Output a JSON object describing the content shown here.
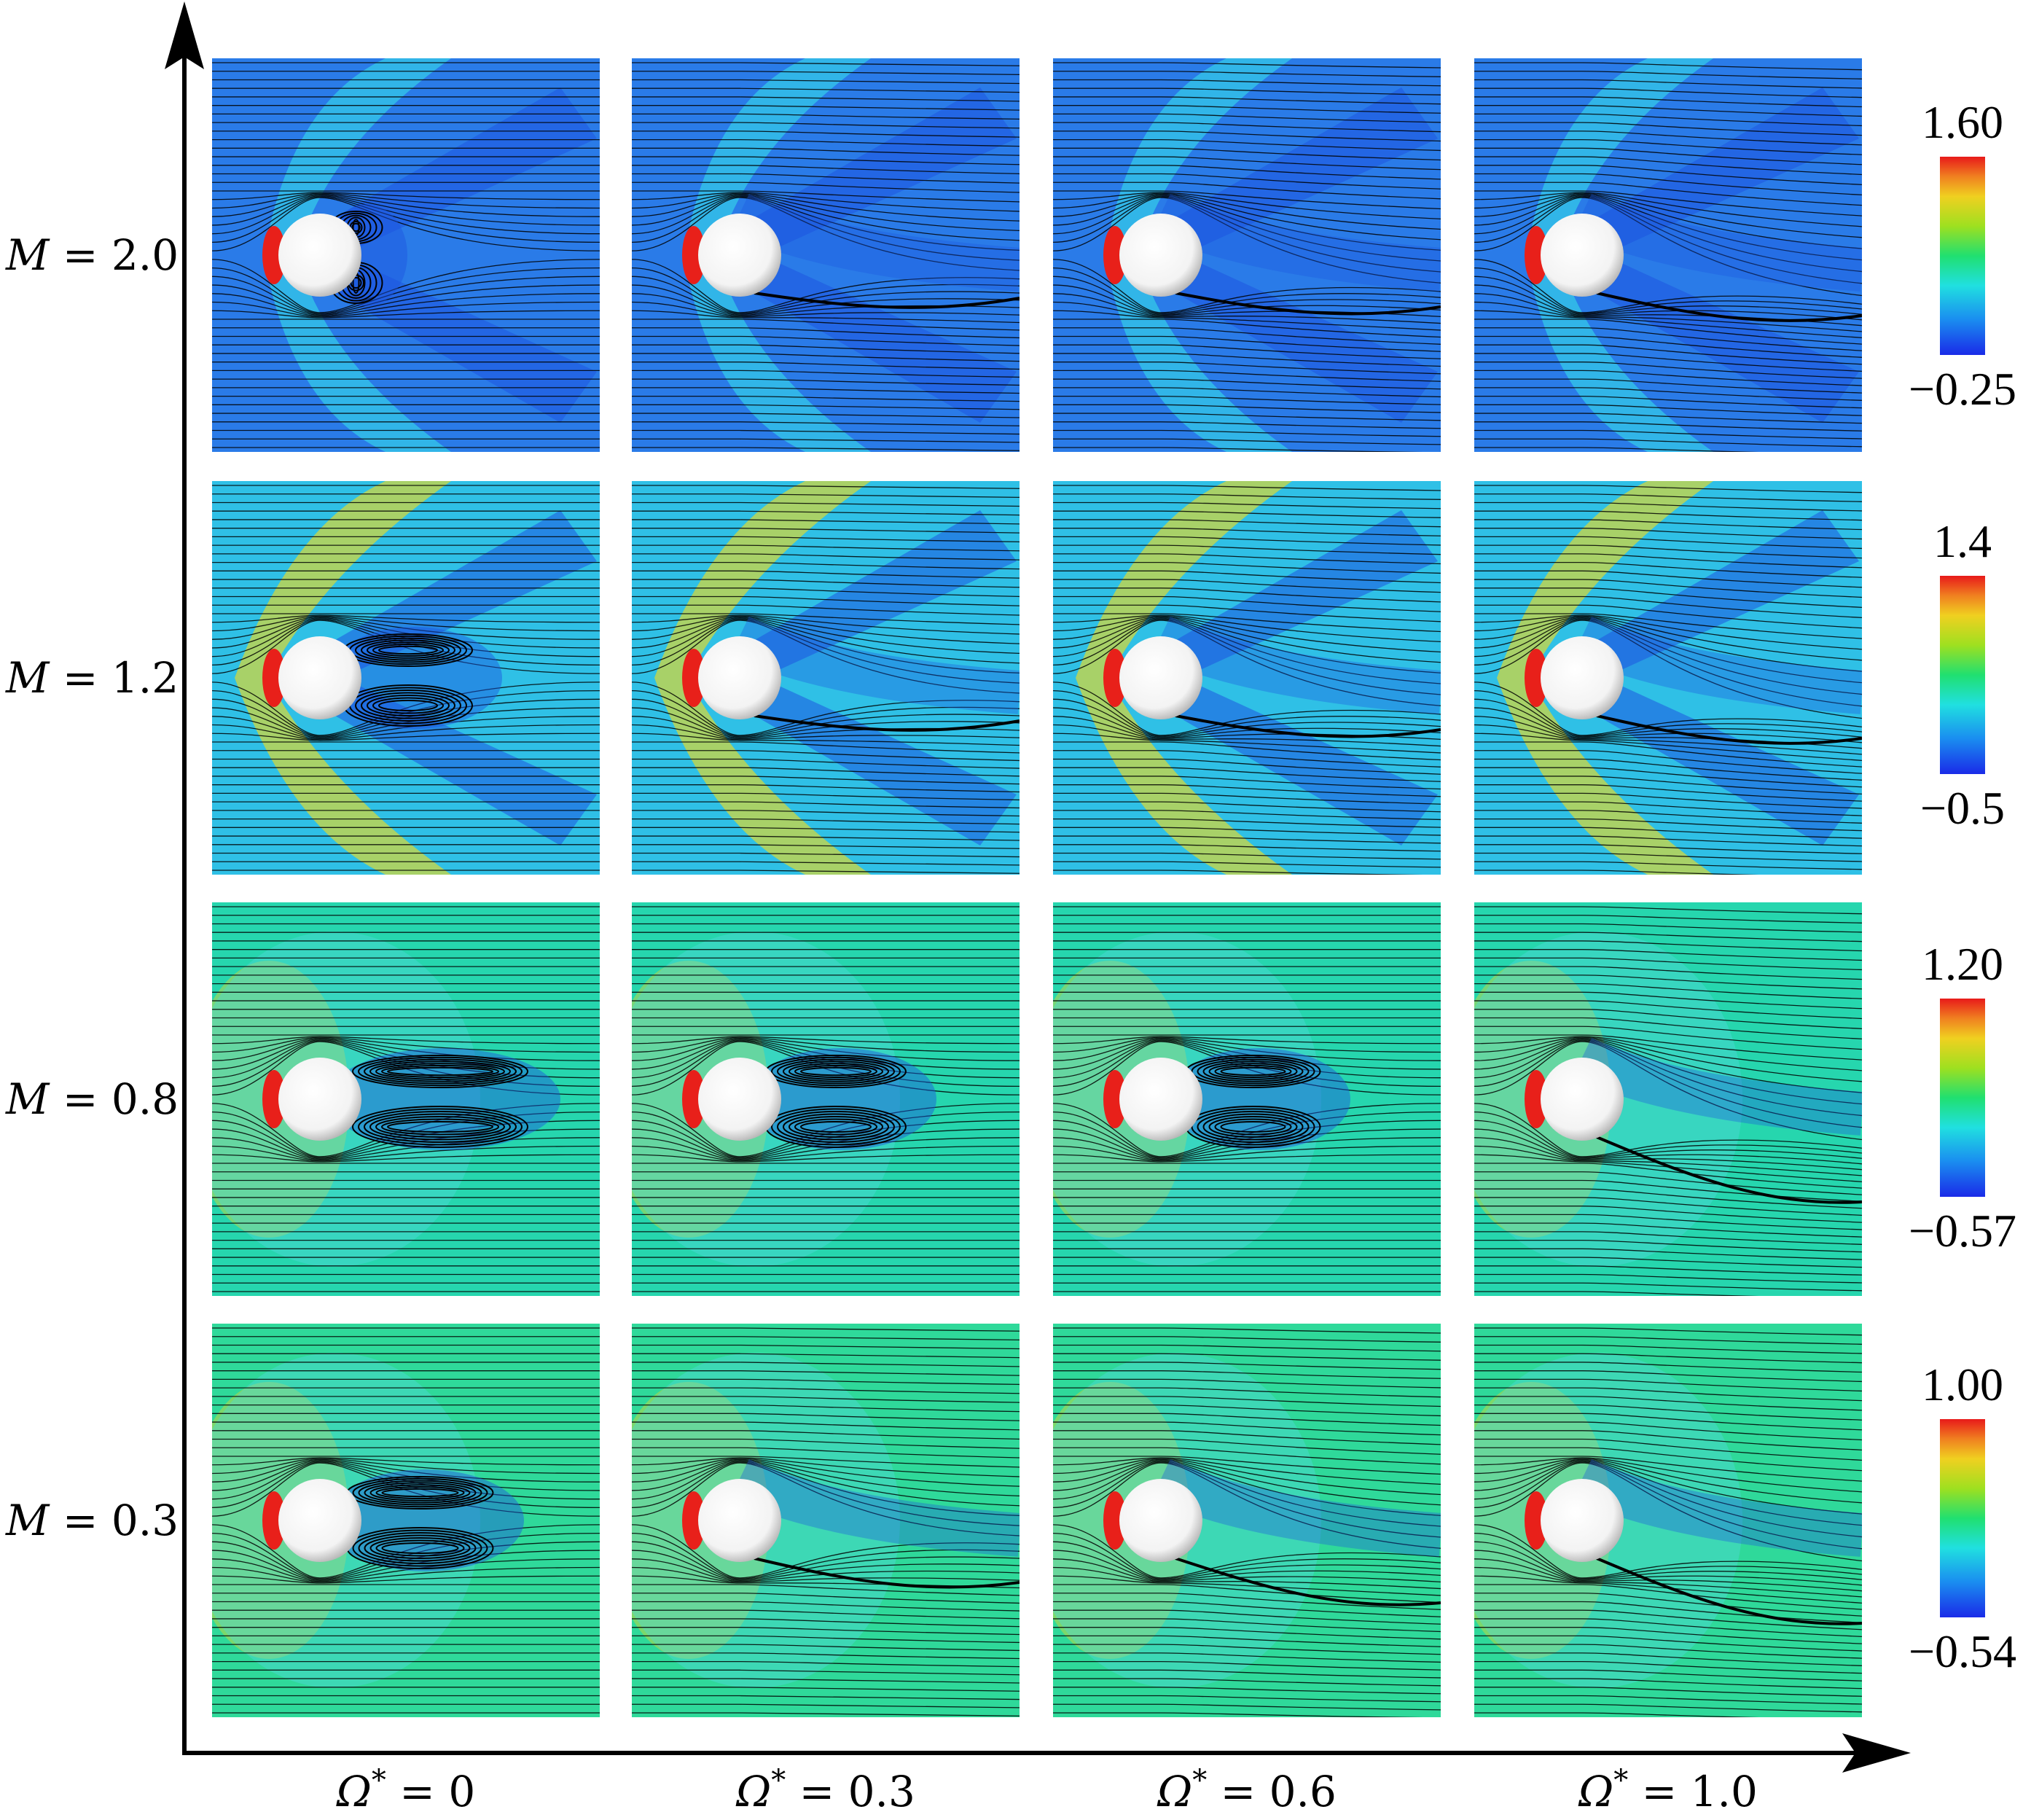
{
  "figure": {
    "row_labels": [
      {
        "symbol": "M",
        "value": "2.0"
      },
      {
        "symbol": "M",
        "value": "1.2"
      },
      {
        "symbol": "M",
        "value": "0.8"
      },
      {
        "symbol": "M",
        "value": "0.3"
      }
    ],
    "column_labels": [
      {
        "symbol": "Ω",
        "sup": "*",
        "value": "0"
      },
      {
        "symbol": "Ω",
        "sup": "*",
        "value": "0.3"
      },
      {
        "symbol": "Ω",
        "sup": "*",
        "value": "0.6"
      },
      {
        "symbol": "Ω",
        "sup": "*",
        "value": "1.0"
      }
    ],
    "colorbars": [
      {
        "max": "1.60",
        "min": "−0.25"
      },
      {
        "max": "1.4",
        "min": "−0.5"
      },
      {
        "max": "1.20",
        "min": "−0.57"
      },
      {
        "max": "1.00",
        "min": "−0.54"
      }
    ],
    "colors": {
      "row_backgrounds": [
        "#2a7be8",
        "#2fc0e6",
        "#26d6ae",
        "#2fd99a"
      ],
      "stagnation": "#e8201a",
      "wake_dark": "#1d55e0",
      "shock": "#dcd832"
    },
    "panels": [
      [
        {
          "shock": "bow",
          "wake": "bubble-small"
        },
        {
          "shock": "bow",
          "wake": "shear"
        },
        {
          "shock": "bow",
          "wake": "shear"
        },
        {
          "shock": "bow",
          "wake": "shear"
        }
      ],
      [
        {
          "shock": "bow-detached",
          "wake": "bubble-long"
        },
        {
          "shock": "bow-detached",
          "wake": "shear"
        },
        {
          "shock": "bow-detached",
          "wake": "shear"
        },
        {
          "shock": "bow-detached",
          "wake": "shear"
        }
      ],
      [
        {
          "shock": "none",
          "wake": "vortex-large"
        },
        {
          "shock": "none",
          "wake": "vortex-lower"
        },
        {
          "shock": "none",
          "wake": "vortex-small"
        },
        {
          "shock": "none",
          "wake": "deflected"
        }
      ],
      [
        {
          "shock": "none",
          "wake": "vortex-pair"
        },
        {
          "shock": "none",
          "wake": "deflected"
        },
        {
          "shock": "none",
          "wake": "deflected"
        },
        {
          "shock": "none",
          "wake": "deflected"
        }
      ]
    ]
  }
}
